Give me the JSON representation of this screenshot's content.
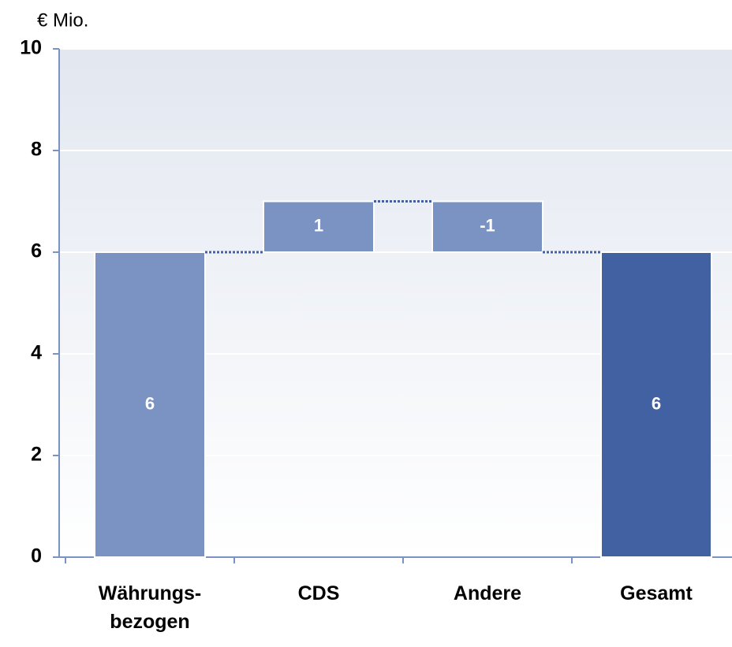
{
  "chart_data": {
    "type": "waterfall",
    "y_axis_label": "€ Mio.",
    "categories": [
      "Währungs-\nbezogen",
      "CDS",
      "Andere",
      "Gesamt"
    ],
    "values": [
      6,
      1,
      -1,
      6
    ],
    "colors": [
      "#7b93c2",
      "#7b93c2",
      "#7b93c2",
      "#4261a3"
    ],
    "totals": [
      false,
      false,
      false,
      true
    ],
    "connector_color": "#4261a3",
    "ylim": [
      0,
      10
    ],
    "yticks": [
      0,
      2,
      4,
      6,
      8,
      10
    ],
    "grid": true
  }
}
